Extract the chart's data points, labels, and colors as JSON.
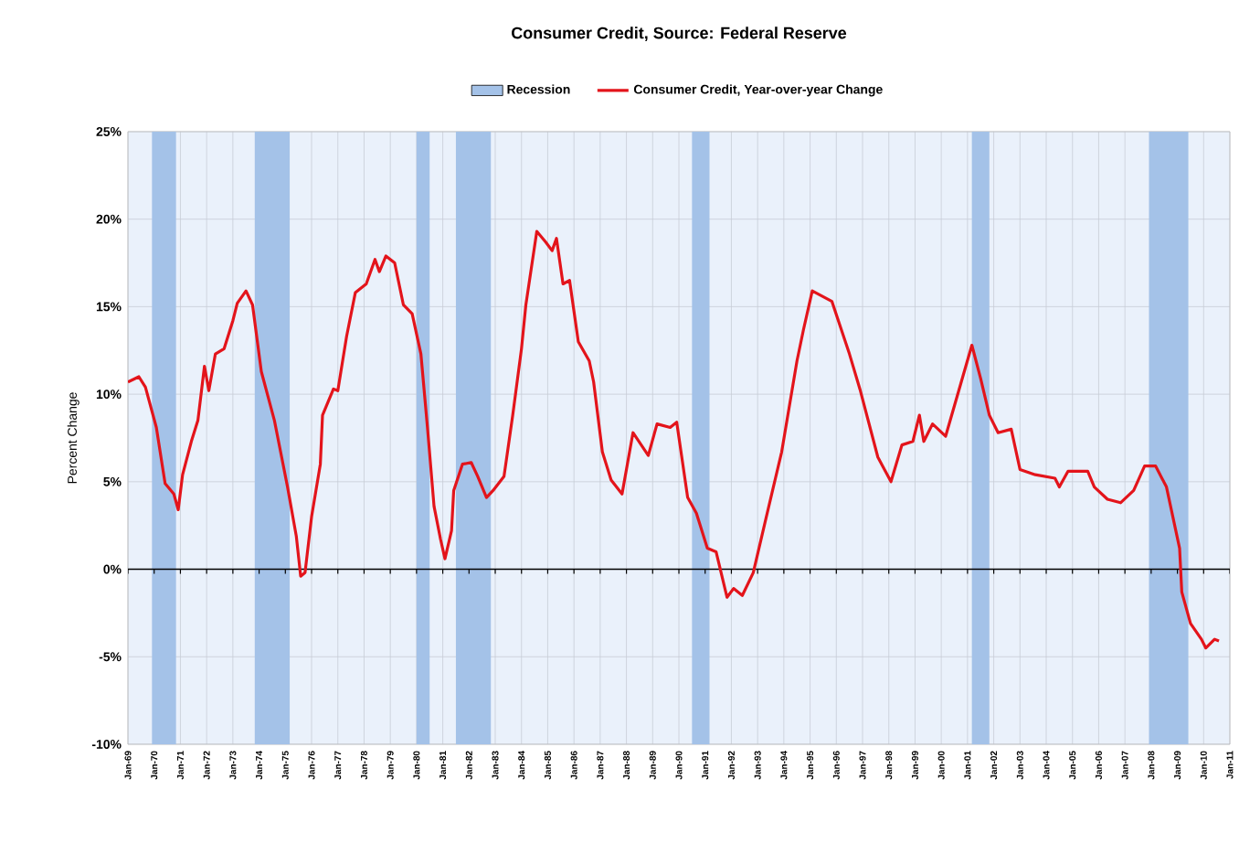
{
  "chart_data": {
    "type": "line",
    "title": "Consumer Credit, Source: Federal Reserve",
    "ylabel": "Percent Change",
    "x": [
      "1969-01",
      "1969-06",
      "1969-09",
      "1970-02",
      "1970-05",
      "1970-06",
      "1970-10",
      "1970-12",
      "1971-02",
      "1971-06",
      "1971-09",
      "1971-12",
      "1972-02",
      "1972-05",
      "1972-09",
      "1973-01",
      "1973-03",
      "1973-07",
      "1973-10",
      "1974-02",
      "1974-08",
      "1975-02",
      "1975-06",
      "1975-08",
      "1975-10",
      "1976-01",
      "1976-05",
      "1976-06",
      "1976-11",
      "1977-01",
      "1977-05",
      "1977-09",
      "1978-02",
      "1978-06",
      "1978-08",
      "1978-11",
      "1979-03",
      "1979-07",
      "1979-11",
      "1980-03",
      "1980-06",
      "1980-09",
      "1980-12",
      "1981-02",
      "1981-05",
      "1981-06",
      "1981-10",
      "1982-02",
      "1982-05",
      "1982-09",
      "1982-12",
      "1983-05",
      "1983-09",
      "1984-01",
      "1984-03",
      "1984-08",
      "1984-12",
      "1985-03",
      "1985-05",
      "1985-08",
      "1985-11",
      "1986-03",
      "1986-08",
      "1986-10",
      "1987-02",
      "1987-06",
      "1987-11",
      "1988-04",
      "1988-11",
      "1989-03",
      "1989-09",
      "1989-12",
      "1990-05",
      "1990-09",
      "1991-02",
      "1991-06",
      "1991-11",
      "1992-02",
      "1992-06",
      "1992-11",
      "1993-05",
      "1993-12",
      "1994-07",
      "1994-10",
      "1995-02",
      "1995-11",
      "1996-07",
      "1996-12",
      "1997-08",
      "1998-02",
      "1998-07",
      "1998-12",
      "1999-03",
      "1999-05",
      "1999-09",
      "2000-03",
      "2000-09",
      "2001-03",
      "2001-07",
      "2001-11",
      "2002-03",
      "2002-09",
      "2003-01",
      "2003-08",
      "2004-05",
      "2004-07",
      "2004-11",
      "2005-08",
      "2005-11",
      "2006-05",
      "2006-11",
      "2007-05",
      "2007-10",
      "2008-03",
      "2008-08",
      "2009-02",
      "2009-03",
      "2009-07",
      "2009-12",
      "2010-02",
      "2010-06",
      "2010-08"
    ],
    "series": [
      {
        "name": "Consumer Credit, Year-over-year Change",
        "color": "#e3141b",
        "values": [
          10.7,
          11.0,
          10.4,
          8.1,
          5.7,
          4.9,
          4.3,
          3.4,
          5.4,
          7.3,
          8.5,
          11.6,
          10.2,
          12.3,
          12.6,
          14.2,
          15.2,
          15.9,
          15.1,
          11.3,
          8.5,
          4.7,
          1.9,
          -0.4,
          -0.2,
          3.0,
          6.0,
          8.8,
          10.3,
          10.2,
          13.3,
          15.8,
          16.3,
          17.7,
          17.0,
          17.9,
          17.5,
          15.1,
          14.6,
          12.3,
          8.1,
          3.6,
          1.7,
          0.6,
          2.2,
          4.5,
          6.0,
          6.1,
          5.3,
          4.1,
          4.5,
          5.3,
          8.8,
          12.6,
          15.1,
          19.3,
          18.7,
          18.2,
          18.9,
          16.3,
          16.5,
          13.0,
          11.9,
          10.7,
          6.7,
          5.1,
          4.3,
          7.8,
          6.5,
          8.3,
          8.1,
          8.4,
          4.1,
          3.2,
          1.2,
          1.0,
          -1.6,
          -1.1,
          -1.5,
          -0.2,
          3.0,
          6.7,
          11.9,
          13.7,
          15.9,
          15.3,
          12.3,
          10.2,
          6.4,
          5.0,
          7.1,
          7.3,
          8.8,
          7.3,
          8.3,
          7.6,
          10.2,
          12.8,
          10.9,
          8.8,
          7.8,
          8.0,
          5.7,
          5.4,
          5.2,
          4.7,
          5.6,
          5.6,
          4.7,
          4.0,
          3.8,
          4.5,
          5.9,
          5.9,
          4.7,
          1.2,
          -1.3,
          -3.1,
          -4.0,
          -4.5,
          -4.0,
          -4.1
        ]
      }
    ],
    "bands": [
      {
        "axis": "x",
        "from": "1969-12",
        "to": "1970-11",
        "label": "Recession",
        "color": "#a4c2e8"
      },
      {
        "axis": "x",
        "from": "1973-11",
        "to": "1975-03",
        "color": "#a4c2e8"
      },
      {
        "axis": "x",
        "from": "1980-01",
        "to": "1980-07",
        "color": "#a4c2e8"
      },
      {
        "axis": "x",
        "from": "1981-07",
        "to": "1982-11",
        "color": "#a4c2e8"
      },
      {
        "axis": "x",
        "from": "1990-07",
        "to": "1991-03",
        "color": "#a4c2e8"
      },
      {
        "axis": "x",
        "from": "2001-03",
        "to": "2001-11",
        "color": "#a4c2e8"
      },
      {
        "axis": "x",
        "from": "2007-12",
        "to": "2009-06",
        "color": "#a4c2e8"
      }
    ],
    "xlim": [
      "1969-01",
      "2011-01"
    ],
    "xticks": [
      {
        "value": "1969-01",
        "label": "Jan-69"
      },
      {
        "value": "1970-01",
        "label": "Jan-70"
      },
      {
        "value": "1971-01",
        "label": "Jan-71"
      },
      {
        "value": "1972-01",
        "label": "Jan-72"
      },
      {
        "value": "1973-01",
        "label": "Jan-73"
      },
      {
        "value": "1974-01",
        "label": "Jan-74"
      },
      {
        "value": "1975-01",
        "label": "Jan-75"
      },
      {
        "value": "1976-01",
        "label": "Jan-76"
      },
      {
        "value": "1977-01",
        "label": "Jan-77"
      },
      {
        "value": "1978-01",
        "label": "Jan-78"
      },
      {
        "value": "1979-01",
        "label": "Jan-79"
      },
      {
        "value": "1980-01",
        "label": "Jan-80"
      },
      {
        "value": "1981-01",
        "label": "Jan-81"
      },
      {
        "value": "1982-01",
        "label": "Jan-82"
      },
      {
        "value": "1983-01",
        "label": "Jan-83"
      },
      {
        "value": "1984-01",
        "label": "Jan-84"
      },
      {
        "value": "1985-01",
        "label": "Jan-85"
      },
      {
        "value": "1986-01",
        "label": "Jan-86"
      },
      {
        "value": "1987-01",
        "label": "Jan-87"
      },
      {
        "value": "1988-01",
        "label": "Jan-88"
      },
      {
        "value": "1989-01",
        "label": "Jan-89"
      },
      {
        "value": "1990-01",
        "label": "Jan-90"
      },
      {
        "value": "1991-01",
        "label": "Jan-91"
      },
      {
        "value": "1992-01",
        "label": "Jan-92"
      },
      {
        "value": "1993-01",
        "label": "Jan-93"
      },
      {
        "value": "1994-01",
        "label": "Jan-94"
      },
      {
        "value": "1995-01",
        "label": "Jan-95"
      },
      {
        "value": "1996-01",
        "label": "Jan-96"
      },
      {
        "value": "1997-01",
        "label": "Jan-97"
      },
      {
        "value": "1998-01",
        "label": "Jan-98"
      },
      {
        "value": "1999-01",
        "label": "Jan-99"
      },
      {
        "value": "2000-01",
        "label": "Jan-00"
      },
      {
        "value": "2001-01",
        "label": "Jan-01"
      },
      {
        "value": "2002-01",
        "label": "Jan-02"
      },
      {
        "value": "2003-01",
        "label": "Jan-03"
      },
      {
        "value": "2004-01",
        "label": "Jan-04"
      },
      {
        "value": "2005-01",
        "label": "Jan-05"
      },
      {
        "value": "2006-01",
        "label": "Jan-06"
      },
      {
        "value": "2007-01",
        "label": "Jan-07"
      },
      {
        "value": "2008-01",
        "label": "Jan-08"
      },
      {
        "value": "2009-01",
        "label": "Jan-09"
      },
      {
        "value": "2010-01",
        "label": "Jan-10"
      },
      {
        "value": "2011-01",
        "label": "Jan-11"
      }
    ],
    "ylim": [
      -10,
      25
    ],
    "yticks": [
      {
        "value": -10,
        "label": "-10%"
      },
      {
        "value": -5,
        "label": "-5%"
      },
      {
        "value": 0,
        "label": "0%"
      },
      {
        "value": 5,
        "label": "5%"
      },
      {
        "value": 10,
        "label": "10%"
      },
      {
        "value": 15,
        "label": "15%"
      },
      {
        "value": 20,
        "label": "20%"
      },
      {
        "value": 25,
        "label": "25%"
      }
    ],
    "grid": true,
    "legend": "top",
    "marker": "none",
    "line_style": "solid"
  }
}
